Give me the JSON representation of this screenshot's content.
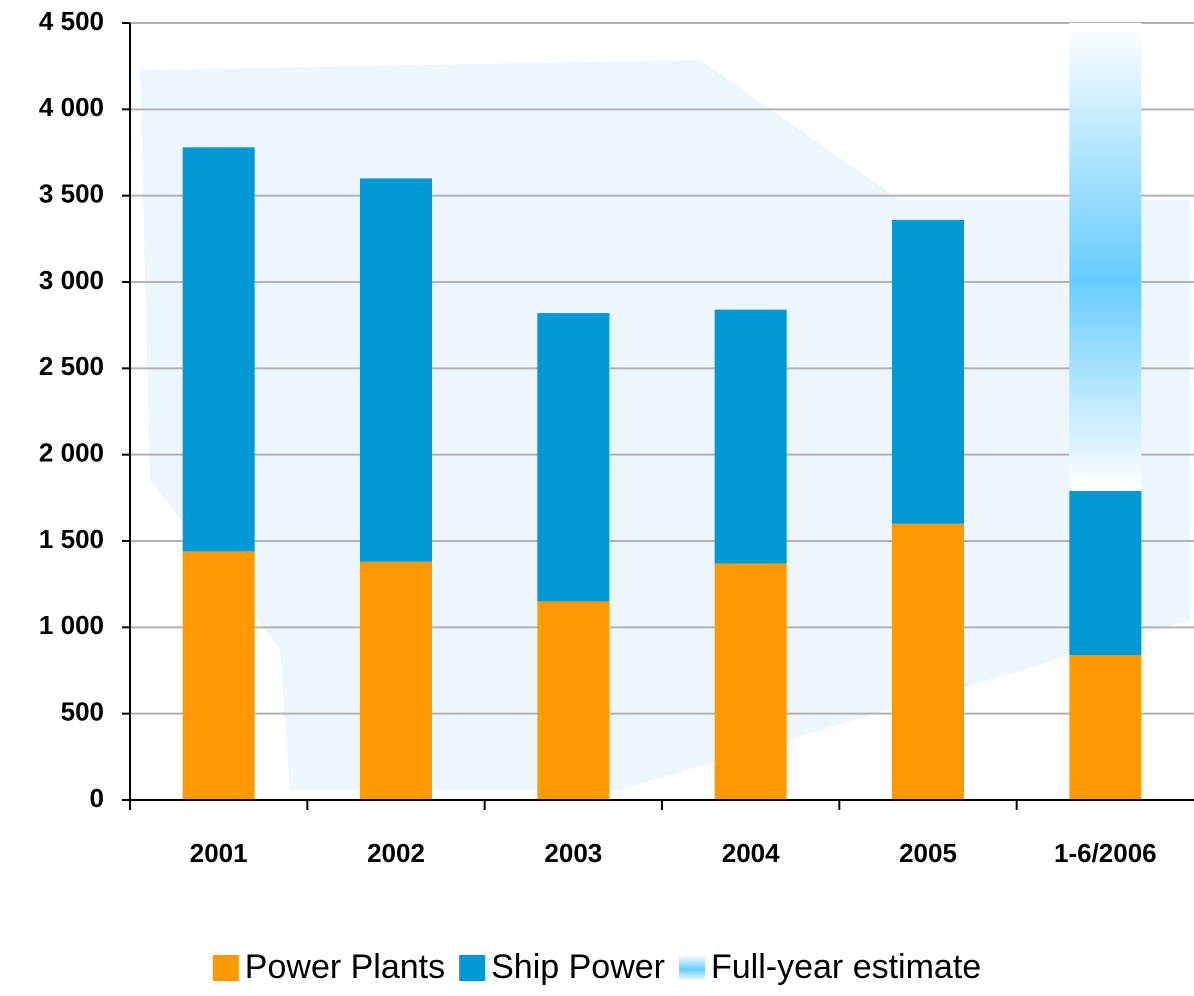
{
  "chart_data": {
    "type": "stacked-bar",
    "categories": [
      "2001",
      "2002",
      "2003",
      "2004",
      "2005",
      "1-6/2006"
    ],
    "series": [
      {
        "name": "Power Plants",
        "color": "#ff9900",
        "values": [
          1440,
          1380,
          1150,
          1370,
          1600,
          840
        ]
      },
      {
        "name": "Ship Power",
        "color": "#0099d6",
        "values": [
          2340,
          2220,
          1670,
          1470,
          1760,
          950
        ]
      },
      {
        "name": "Full-year estimate",
        "color": "#66ccff",
        "values": [
          null,
          null,
          null,
          null,
          null,
          2710
        ]
      }
    ],
    "ylim": [
      0,
      4500
    ],
    "yticks": [
      0,
      500,
      {
        "value": 1000,
        "label": "1 000"
      },
      {
        "value": 1500,
        "label": "1 500"
      },
      {
        "value": 2000,
        "label": "2 000"
      },
      {
        "value": 2500,
        "label": "2 500"
      },
      {
        "value": 3000,
        "label": "3 000"
      },
      {
        "value": 3500,
        "label": "3 500"
      },
      {
        "value": 4000,
        "label": "4 000"
      },
      {
        "value": 4500,
        "label": "4 500"
      }
    ],
    "grid": true
  }
}
